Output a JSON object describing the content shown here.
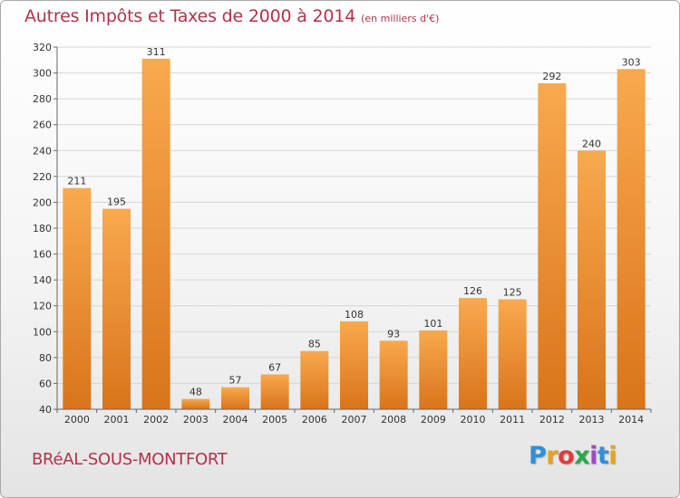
{
  "header": {
    "title": "Autres Impôts et Taxes de 2000 à 2014",
    "unit": "(en milliers d'€)"
  },
  "commune": "BRéAL-SOUS-MONTFORT",
  "logo": {
    "letters": [
      "P",
      "r",
      "o",
      "x",
      "i",
      "t",
      "i"
    ],
    "colors": [
      "#2f8fd8",
      "#e9a21a",
      "#e03a3a",
      "#2aa84a",
      "#9c4bc4",
      "#2f8fd8",
      "#e9a21a"
    ]
  },
  "colors": {
    "bar_top": "#f9a94e",
    "bar_bottom": "#d9741a",
    "title": "#b3324a",
    "grid": "#d6d6d6"
  },
  "chart_data": {
    "type": "bar",
    "title": "Autres Impôts et Taxes de 2000 à 2014",
    "subtitle": "(en milliers d'€)",
    "xlabel": "",
    "ylabel": "",
    "categories": [
      "2000",
      "2001",
      "2002",
      "2003",
      "2004",
      "2005",
      "2006",
      "2007",
      "2008",
      "2009",
      "2010",
      "2011",
      "2012",
      "2013",
      "2014"
    ],
    "values": [
      211,
      195,
      311,
      48,
      57,
      67,
      85,
      108,
      93,
      101,
      126,
      125,
      292,
      240,
      303
    ],
    "ylim": [
      40,
      320
    ],
    "yticks": [
      40,
      60,
      80,
      100,
      120,
      140,
      160,
      180,
      200,
      220,
      240,
      260,
      280,
      300,
      320
    ],
    "grid": true,
    "data_labels": true
  }
}
